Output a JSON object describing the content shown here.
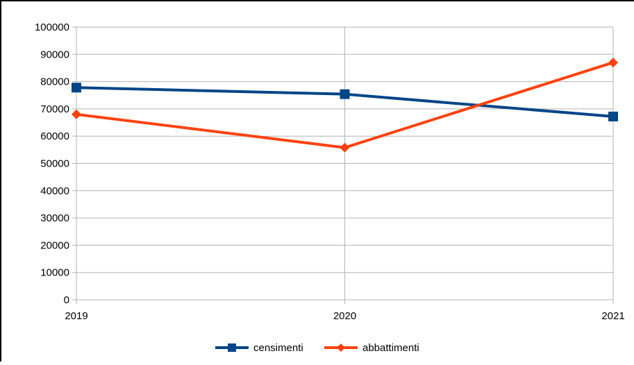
{
  "chart_data": {
    "type": "line",
    "title": "",
    "xlabel": "",
    "ylabel": "",
    "categories": [
      "2019",
      "2020",
      "2021"
    ],
    "ylim": [
      0,
      100000
    ],
    "yticks": [
      0,
      10000,
      20000,
      30000,
      40000,
      50000,
      60000,
      70000,
      80000,
      90000,
      100000
    ],
    "grid": true,
    "legend_position": "bottom",
    "series": [
      {
        "name": "censimenti",
        "values": [
          77800,
          75400,
          67200
        ],
        "color": "#004586",
        "marker": "square"
      },
      {
        "name": "abbattimenti",
        "values": [
          68000,
          55800,
          87000
        ],
        "color": "#ff420e",
        "marker": "diamond"
      }
    ]
  }
}
